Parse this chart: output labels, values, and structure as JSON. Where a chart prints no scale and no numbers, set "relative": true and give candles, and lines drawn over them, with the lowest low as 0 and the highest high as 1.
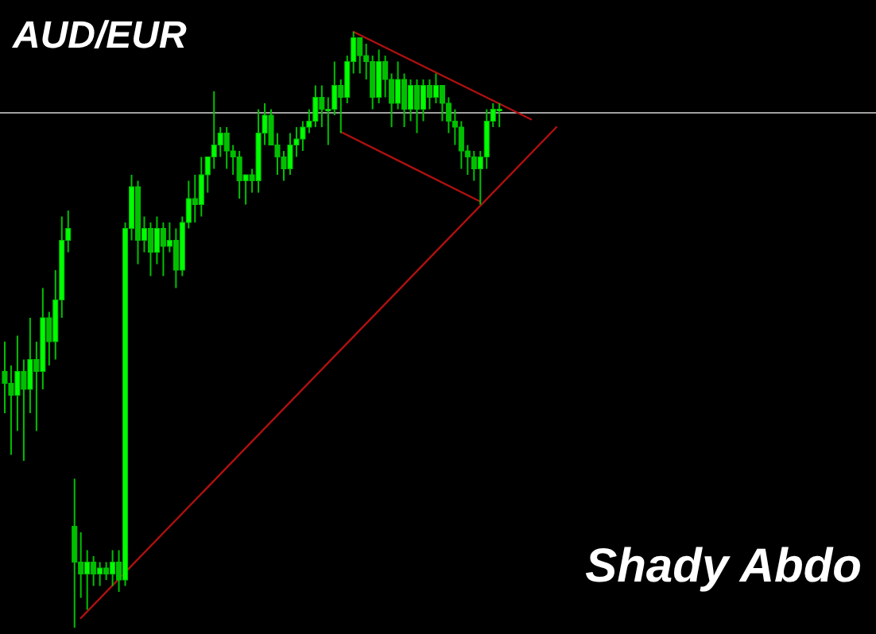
{
  "chart_data": {
    "type": "candlestick",
    "title": "AUD/EUR",
    "relative": true,
    "categories": [
      null,
      null,
      null,
      null,
      null,
      null,
      null,
      null,
      null,
      null,
      null,
      null,
      null,
      null,
      null,
      null,
      null,
      null,
      null,
      null,
      null,
      null,
      null,
      null,
      null,
      null,
      null,
      null,
      null,
      null,
      null,
      null,
      null,
      null,
      null,
      null,
      null,
      null,
      null,
      null,
      null,
      null,
      null,
      null,
      null,
      null,
      null,
      null,
      null,
      null,
      null,
      null,
      null,
      null,
      null,
      null,
      null,
      null,
      null,
      null,
      null,
      null,
      null,
      null,
      null,
      null,
      null,
      null,
      null,
      null,
      null,
      null,
      null,
      null,
      null,
      null,
      null,
      null,
      null,
      null,
      null,
      null,
      null,
      null,
      null,
      null,
      null,
      null
    ],
    "series": [
      {
        "color": "#00c000",
        "ohlc": [
          [
            0.43,
            0.48,
            0.36,
            0.41
          ],
          [
            0.41,
            0.44,
            0.29,
            0.39
          ],
          [
            0.39,
            0.49,
            0.33,
            0.43
          ],
          [
            0.43,
            0.45,
            0.28,
            0.4
          ],
          [
            0.4,
            0.52,
            0.36,
            0.45
          ],
          [
            0.45,
            0.48,
            0.33,
            0.43
          ],
          [
            0.43,
            0.57,
            0.4,
            0.52
          ],
          [
            0.52,
            0.53,
            0.44,
            0.48
          ],
          [
            0.48,
            0.6,
            0.45,
            0.55
          ],
          [
            0.55,
            0.69,
            0.52,
            0.65
          ],
          [
            0.65,
            0.7,
            0.63,
            0.67
          ],
          [
            0.17,
            0.25,
            0,
            0.11
          ],
          [
            0.11,
            0.16,
            0.05,
            0.09
          ],
          [
            0.09,
            0.13,
            0.03,
            0.11
          ],
          [
            0.11,
            0.12,
            0.07,
            0.09
          ],
          [
            0.09,
            0.11,
            0.07,
            0.1
          ],
          [
            0.1,
            0.11,
            0.08,
            0.09
          ],
          [
            0.09,
            0.13,
            0.07,
            0.11
          ],
          [
            0.11,
            0.13,
            0.06,
            0.08
          ],
          [
            0.08,
            0.68,
            0.07,
            0.67
          ],
          [
            0.67,
            0.76,
            0.65,
            0.74
          ],
          [
            0.74,
            0.75,
            0.61,
            0.65
          ],
          [
            0.65,
            0.69,
            0.63,
            0.67
          ],
          [
            0.67,
            0.68,
            0.59,
            0.63
          ],
          [
            0.63,
            0.69,
            0.61,
            0.67
          ],
          [
            0.67,
            0.68,
            0.59,
            0.64
          ],
          [
            0.64,
            0.68,
            0.63,
            0.65
          ],
          [
            0.65,
            0.67,
            0.57,
            0.6
          ],
          [
            0.6,
            0.69,
            0.59,
            0.68
          ],
          [
            0.68,
            0.75,
            0.67,
            0.72
          ],
          [
            0.72,
            0.76,
            0.68,
            0.71
          ],
          [
            0.71,
            0.79,
            0.69,
            0.76
          ],
          [
            0.76,
            0.79,
            0.73,
            0.79
          ],
          [
            0.79,
            0.9,
            0.77,
            0.81
          ],
          [
            0.81,
            0.84,
            0.79,
            0.83
          ],
          [
            0.83,
            0.84,
            0.77,
            0.8
          ],
          [
            0.8,
            0.81,
            0.76,
            0.79
          ],
          [
            0.79,
            0.8,
            0.72,
            0.75
          ],
          [
            0.75,
            0.76,
            0.71,
            0.76
          ],
          [
            0.76,
            0.77,
            0.73,
            0.75
          ],
          [
            0.75,
            0.87,
            0.73,
            0.83
          ],
          [
            0.83,
            0.88,
            0.81,
            0.86
          ],
          [
            0.86,
            0.87,
            0.81,
            0.81
          ],
          [
            0.81,
            0.83,
            0.76,
            0.79
          ],
          [
            0.79,
            0.8,
            0.75,
            0.77
          ],
          [
            0.77,
            0.83,
            0.76,
            0.81
          ],
          [
            0.81,
            0.84,
            0.79,
            0.82
          ],
          [
            0.82,
            0.85,
            0.8,
            0.84
          ],
          [
            0.84,
            0.87,
            0.83,
            0.85
          ],
          [
            0.85,
            0.91,
            0.84,
            0.89
          ],
          [
            0.89,
            0.91,
            0.84,
            0.87
          ],
          [
            0.87,
            0.89,
            0.81,
            0.87
          ],
          [
            0.87,
            0.95,
            0.86,
            0.91
          ],
          [
            0.91,
            0.92,
            0.83,
            0.89
          ],
          [
            0.89,
            0.96,
            0.88,
            0.95
          ],
          [
            0.95,
            1,
            0.93,
            0.99
          ],
          [
            0.99,
            0.99,
            0.93,
            0.96
          ],
          [
            0.96,
            0.98,
            0.92,
            0.95
          ],
          [
            0.95,
            0.96,
            0.87,
            0.89
          ],
          [
            0.89,
            0.97,
            0.88,
            0.95
          ],
          [
            0.95,
            0.96,
            0.89,
            0.92
          ],
          [
            0.92,
            0.93,
            0.84,
            0.88
          ],
          [
            0.88,
            0.95,
            0.87,
            0.92
          ],
          [
            0.92,
            0.93,
            0.84,
            0.87
          ],
          [
            0.87,
            0.92,
            0.85,
            0.91
          ],
          [
            0.91,
            0.92,
            0.83,
            0.87
          ],
          [
            0.87,
            0.92,
            0.85,
            0.91
          ],
          [
            0.91,
            0.92,
            0.87,
            0.89
          ],
          [
            0.89,
            0.93,
            0.88,
            0.91
          ],
          [
            0.91,
            0.91,
            0.85,
            0.88
          ],
          [
            0.88,
            0.89,
            0.83,
            0.85
          ],
          [
            0.85,
            0.87,
            0.81,
            0.84
          ],
          [
            0.84,
            0.85,
            0.77,
            0.8
          ],
          [
            0.8,
            0.81,
            0.76,
            0.79
          ],
          [
            0.79,
            0.8,
            0.75,
            0.77
          ],
          [
            0.77,
            0.8,
            0.71,
            0.79
          ],
          [
            0.79,
            0.87,
            0.77,
            0.85
          ],
          [
            0.85,
            0.88,
            0.84,
            0.87
          ],
          [
            0.87,
            0.88,
            0.84,
            0.87
          ],
          null,
          null,
          null,
          null,
          null,
          null,
          null,
          null,
          null
        ]
      },
      {
        "type": "line",
        "color": "#b01010",
        "values": [
          null,
          null,
          null,
          null,
          null,
          null,
          null,
          null,
          null,
          null,
          null,
          null,
          null,
          null,
          null,
          null,
          null,
          null,
          null,
          null,
          null,
          null,
          null,
          null,
          null,
          null,
          null,
          null,
          null,
          null,
          null,
          null,
          null,
          null,
          null,
          null,
          null,
          null,
          null,
          null,
          null,
          null,
          null,
          null,
          null,
          null,
          null,
          null,
          null,
          null,
          null,
          null,
          null,
          null,
          null,
          1,
          null,
          null,
          null,
          null,
          null,
          null,
          null,
          null,
          null,
          null,
          null,
          null,
          null,
          null,
          null,
          null,
          null,
          null,
          null,
          null,
          null,
          null,
          null,
          null,
          null,
          null,
          null,
          0.853,
          null,
          null,
          null,
          null
        ]
      },
      {
        "type": "line",
        "color": "#b01010",
        "values": [
          null,
          null,
          null,
          null,
          null,
          null,
          null,
          null,
          null,
          null,
          null,
          null,
          null,
          null,
          null,
          null,
          null,
          null,
          null,
          null,
          null,
          null,
          null,
          null,
          null,
          null,
          null,
          null,
          null,
          null,
          null,
          null,
          null,
          null,
          null,
          null,
          null,
          null,
          null,
          null,
          null,
          null,
          null,
          null,
          null,
          null,
          null,
          null,
          null,
          null,
          null,
          null,
          null,
          0.832,
          null,
          null,
          null,
          null,
          null,
          null,
          null,
          null,
          null,
          null,
          null,
          null,
          null,
          null,
          null,
          null,
          null,
          null,
          null,
          null,
          null,
          0.715,
          null,
          null,
          null,
          null,
          null,
          null,
          null,
          null,
          null,
          null,
          null,
          null
        ]
      },
      {
        "type": "line",
        "color": "#b01010",
        "values": [
          null,
          null,
          null,
          null,
          null,
          null,
          null,
          null,
          null,
          null,
          null,
          null,
          0.016,
          null,
          null,
          null,
          null,
          null,
          null,
          null,
          null,
          null,
          null,
          null,
          null,
          null,
          null,
          null,
          null,
          null,
          null,
          null,
          null,
          null,
          null,
          null,
          null,
          null,
          null,
          null,
          null,
          null,
          null,
          null,
          null,
          null,
          null,
          null,
          null,
          null,
          null,
          null,
          null,
          null,
          null,
          null,
          null,
          null,
          null,
          null,
          null,
          null,
          null,
          null,
          null,
          null,
          null,
          null,
          null,
          null,
          null,
          null,
          null,
          null,
          null,
          null,
          null,
          null,
          null,
          null,
          null,
          null,
          null,
          null,
          null,
          null,
          null,
          0.84
        ]
      }
    ],
    "ref_lines": [
      {
        "axis": "y",
        "value": 0.864,
        "color": "#a0a0a0"
      }
    ],
    "annotations": [
      "Shady Abdo"
    ]
  }
}
